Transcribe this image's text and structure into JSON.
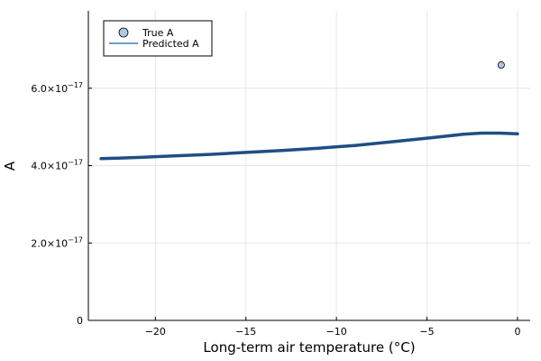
{
  "chart_data": {
    "type": "line",
    "xlabel": "Long-term air temperature (°C)",
    "ylabel": "A",
    "xlim": [
      -23.7,
      0.7
    ],
    "ylim": [
      0,
      8e-17
    ],
    "grid": true,
    "legend_placement": "top-left",
    "x_ticks": [
      {
        "value": -20,
        "label": "−20"
      },
      {
        "value": -15,
        "label": "−15"
      },
      {
        "value": -10,
        "label": "−10"
      },
      {
        "value": -5,
        "label": "−5"
      },
      {
        "value": 0,
        "label": "0"
      }
    ],
    "y_ticks": [
      {
        "value": 0,
        "mantissa": "0",
        "exponent": ""
      },
      {
        "value": 2e-17,
        "mantissa": "2.0×10",
        "exponent": "−17"
      },
      {
        "value": 4e-17,
        "mantissa": "4.0×10",
        "exponent": "−17"
      },
      {
        "value": 6e-17,
        "mantissa": "6.0×10",
        "exponent": "−17"
      }
    ],
    "series": [
      {
        "name": "True A",
        "kind": "scatter",
        "color": "#aec7e8",
        "points": [
          {
            "x": -0.9,
            "y": 6.6e-17
          }
        ]
      },
      {
        "name": "Predicted A",
        "kind": "line",
        "color": "#1f4e84",
        "points": [
          {
            "x": -23,
            "y": 4.18e-17
          },
          {
            "x": -21,
            "y": 4.21e-17
          },
          {
            "x": -19,
            "y": 4.25e-17
          },
          {
            "x": -17,
            "y": 4.29e-17
          },
          {
            "x": -15,
            "y": 4.34e-17
          },
          {
            "x": -13,
            "y": 4.39e-17
          },
          {
            "x": -11,
            "y": 4.45e-17
          },
          {
            "x": -9,
            "y": 4.52e-17
          },
          {
            "x": -7,
            "y": 4.61e-17
          },
          {
            "x": -5,
            "y": 4.71e-17
          },
          {
            "x": -3,
            "y": 4.81e-17
          },
          {
            "x": -2,
            "y": 4.84e-17
          },
          {
            "x": -1,
            "y": 4.84e-17
          },
          {
            "x": 0,
            "y": 4.82e-17
          }
        ]
      }
    ]
  }
}
